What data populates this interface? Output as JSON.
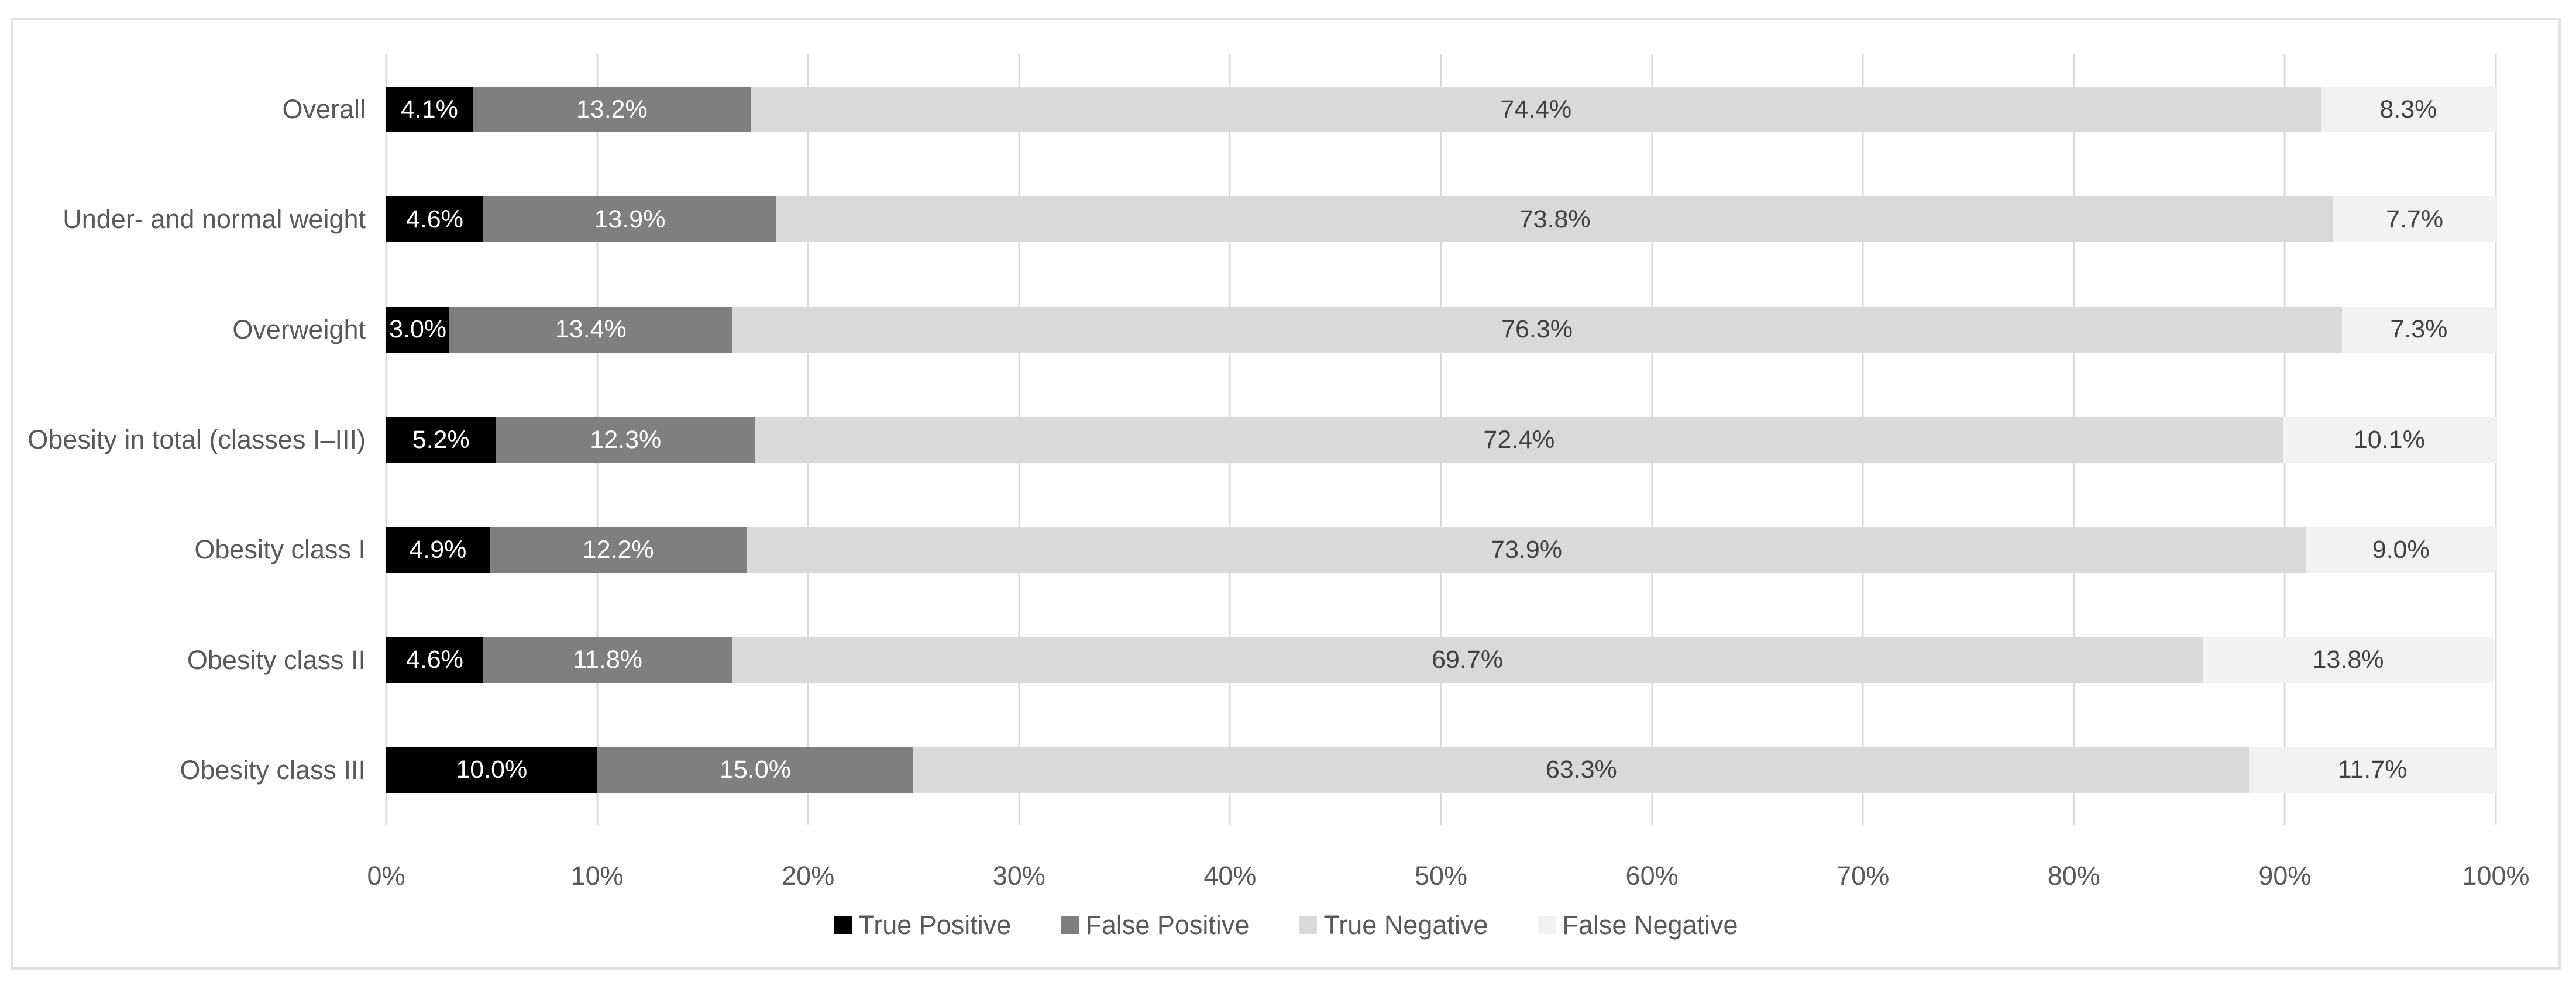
{
  "chart_data": {
    "type": "bar",
    "orientation": "horizontal-stacked",
    "title": "",
    "xlabel": "",
    "ylabel": "",
    "grid": true,
    "legend_position": "bottom",
    "categories": [
      "Overall",
      "Under- and normal weight",
      "Overweight",
      "Obesity in total (classes I–III)",
      "Obesity class I",
      "Obesity class II",
      "Obesity class III"
    ],
    "series": [
      {
        "name": "True Positive",
        "color": "#000000",
        "label_color": "#ffffff",
        "values": [
          4.1,
          4.6,
          3.0,
          5.2,
          4.9,
          4.6,
          10.0
        ]
      },
      {
        "name": "False Positive",
        "color": "#7f7f7f",
        "label_color": "#ffffff",
        "values": [
          13.2,
          13.9,
          13.4,
          12.3,
          12.2,
          11.8,
          15.0
        ]
      },
      {
        "name": "True Negative",
        "color": "#d9d9d9",
        "label_color": "#404040",
        "values": [
          74.4,
          73.8,
          76.3,
          72.4,
          73.9,
          69.7,
          63.3
        ]
      },
      {
        "name": "False Negative",
        "color": "#f2f2f2",
        "label_color": "#404040",
        "values": [
          8.3,
          7.7,
          7.3,
          10.1,
          9.0,
          13.8,
          11.7
        ]
      }
    ],
    "value_suffix": "%",
    "x_axis": {
      "min": 0,
      "max": 100,
      "ticks": [
        "0%",
        "10%",
        "20%",
        "30%",
        "40%",
        "50%",
        "60%",
        "70%",
        "80%",
        "90%",
        "100%"
      ]
    },
    "colors": {
      "gridline": "#d9d9d9",
      "frame_border": "#e2e2e2",
      "axis_text": "#595959",
      "background": "#ffffff"
    }
  }
}
